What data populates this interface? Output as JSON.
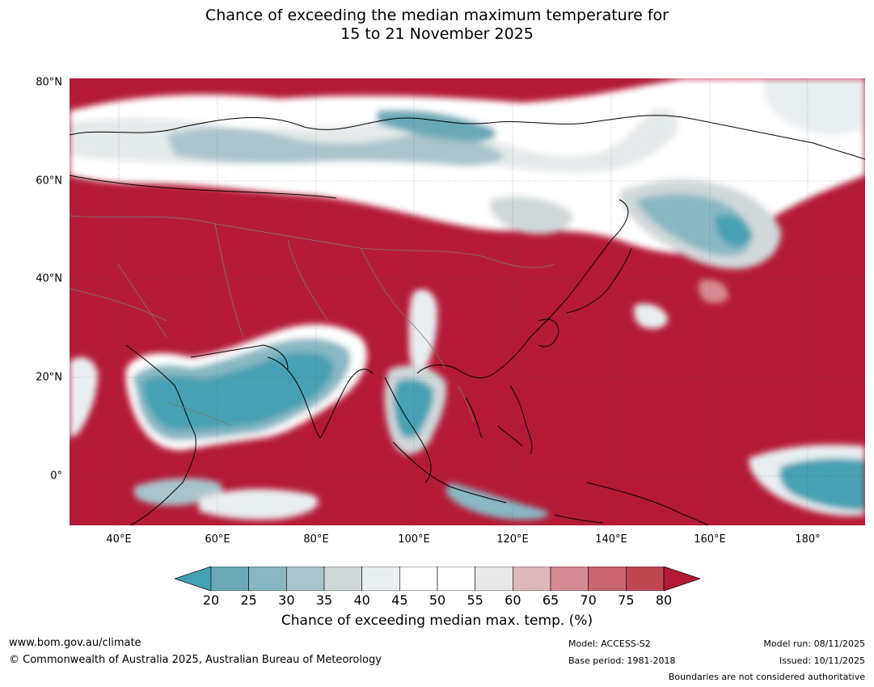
{
  "title": {
    "line1": "Chance of exceeding the median maximum temperature for",
    "line2": "15 to 21 November 2025"
  },
  "map": {
    "latitude_labels": [
      "80°N",
      "60°N",
      "40°N",
      "20°N",
      "0°"
    ],
    "longitude_labels": [
      "40°E",
      "60°E",
      "80°E",
      "100°E",
      "120°E",
      "140°E",
      "160°E",
      "180°"
    ],
    "latitude_values": [
      80,
      60,
      40,
      20,
      0
    ],
    "longitude_values": [
      40,
      60,
      80,
      100,
      120,
      140,
      160,
      180
    ],
    "extent": {
      "lon_min": 30,
      "lon_max": 191.5,
      "lat_min": -10,
      "lat_max": 80.8
    }
  },
  "colorbar": {
    "ticks": [
      "20",
      "25",
      "30",
      "35",
      "40",
      "45",
      "50",
      "55",
      "60",
      "65",
      "70",
      "75",
      "80"
    ],
    "colors": [
      "#46a0b3",
      "#6aa8b8",
      "#88b7c3",
      "#a9c4ca",
      "#d0d8da",
      "#e9eff1",
      "#ffffff",
      "#ffffff",
      "#e8e8e8",
      "#dfb8bd",
      "#d68a93",
      "#c86570",
      "#bf4752",
      "#b41a37"
    ],
    "label": "Chance of exceeding median max. temp. (%)"
  },
  "footer": {
    "website": "www.bom.gov.au/climate",
    "copyright": "© Commonwealth of Australia 2025, Australian Bureau of Meteorology",
    "model": "Model: ACCESS-S2",
    "base_period": "Base period: 1981-2018",
    "model_run": "Model run: 08/11/2025",
    "issued": "Issued: 10/11/2025",
    "boundaries": "Boundaries are not considered authoritative"
  }
}
